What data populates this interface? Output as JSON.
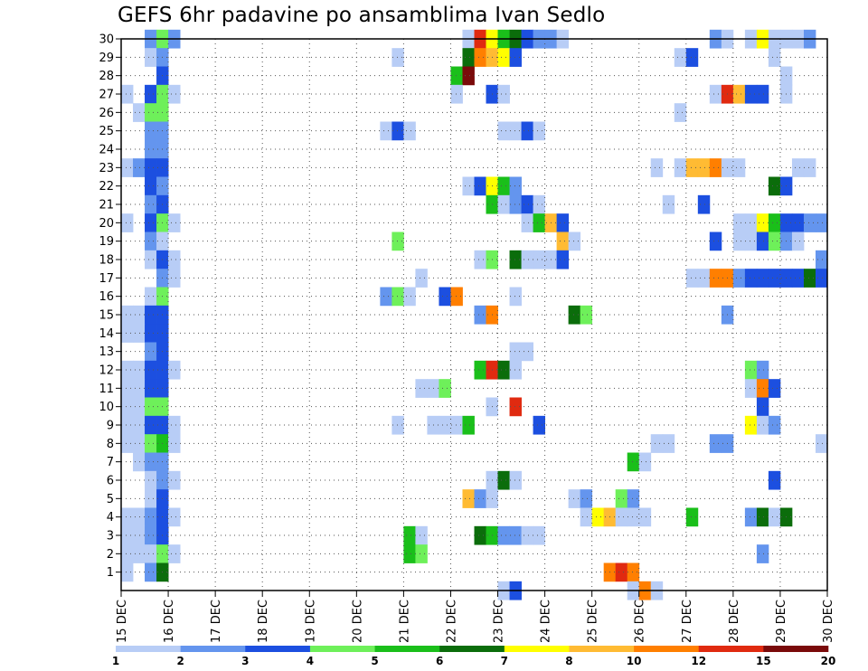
{
  "chart_data": {
    "type": "heatmap",
    "title": "GEFS 6hr padavine po ansamblima Ivan Sedlo",
    "xlabel": "",
    "ylabel": "",
    "x_tick_labels": [
      "15 DEC",
      "16 DEC",
      "17 DEC",
      "18 DEC",
      "19 DEC",
      "20 DEC",
      "21 DEC",
      "22 DEC",
      "23 DEC",
      "24 DEC",
      "25 DEC",
      "26 DEC",
      "27 DEC",
      "28 DEC",
      "29 DEC",
      "30 DEC"
    ],
    "y_tick_labels": [
      "1",
      "2",
      "3",
      "4",
      "5",
      "6",
      "7",
      "8",
      "9",
      "10",
      "11",
      "12",
      "13",
      "14",
      "15",
      "16",
      "17",
      "18",
      "19",
      "20",
      "21",
      "22",
      "23",
      "24",
      "25",
      "26",
      "27",
      "28",
      "29",
      "30"
    ],
    "xlim": [
      0,
      60
    ],
    "ylim": [
      0,
      30
    ],
    "cell_unit": "6 hours",
    "grid": true,
    "legend": {
      "placement": "bottom",
      "colors": [
        "#b8cdf6",
        "#6495ee",
        "#1c4fe0",
        "#6ef05a",
        "#1abf1a",
        "#0b6d0b",
        "#ffff00",
        "#ffbb33",
        "#ff7f00",
        "#e02a10",
        "#7a0a0a"
      ],
      "labels": [
        "1",
        "2",
        "3",
        "4",
        "5",
        "6",
        "7",
        "8",
        "10",
        "12",
        "15",
        "20"
      ]
    },
    "rows": [
      {
        "y": 30,
        "cells": [
          [
            2,
            1
          ],
          [
            3,
            3
          ],
          [
            4,
            1
          ],
          [
            29,
            0
          ],
          [
            30,
            9
          ],
          [
            31,
            6
          ],
          [
            32,
            4
          ],
          [
            33,
            5
          ],
          [
            34,
            2
          ],
          [
            35,
            1
          ],
          [
            36,
            1
          ],
          [
            37,
            0
          ],
          [
            50,
            1
          ],
          [
            51,
            0
          ],
          [
            53,
            0
          ],
          [
            54,
            6
          ],
          [
            55,
            0
          ],
          [
            56,
            0
          ],
          [
            57,
            0
          ],
          [
            58,
            1
          ]
        ]
      },
      {
        "y": 29,
        "cells": [
          [
            2,
            0
          ],
          [
            3,
            1
          ],
          [
            23,
            0
          ],
          [
            29,
            5
          ],
          [
            30,
            8
          ],
          [
            31,
            7
          ],
          [
            32,
            6
          ],
          [
            33,
            2
          ],
          [
            47,
            0
          ],
          [
            48,
            2
          ],
          [
            55,
            0
          ]
        ]
      },
      {
        "y": 28,
        "cells": [
          [
            3,
            2
          ],
          [
            28,
            4
          ],
          [
            29,
            10
          ],
          [
            56,
            0
          ]
        ]
      },
      {
        "y": 27,
        "cells": [
          [
            0,
            0
          ],
          [
            2,
            2
          ],
          [
            3,
            3
          ],
          [
            4,
            0
          ],
          [
            28,
            0
          ],
          [
            31,
            2
          ],
          [
            32,
            0
          ],
          [
            50,
            0
          ],
          [
            51,
            9
          ],
          [
            52,
            7
          ],
          [
            53,
            2
          ],
          [
            54,
            2
          ],
          [
            56,
            0
          ]
        ]
      },
      {
        "y": 26,
        "cells": [
          [
            1,
            0
          ],
          [
            2,
            3
          ],
          [
            3,
            3
          ],
          [
            47,
            0
          ]
        ]
      },
      {
        "y": 25,
        "cells": [
          [
            2,
            1
          ],
          [
            3,
            1
          ],
          [
            22,
            0
          ],
          [
            23,
            2
          ],
          [
            24,
            0
          ],
          [
            32,
            0
          ],
          [
            33,
            0
          ],
          [
            34,
            2
          ],
          [
            35,
            0
          ]
        ]
      },
      {
        "y": 24,
        "cells": [
          [
            2,
            1
          ],
          [
            3,
            1
          ]
        ]
      },
      {
        "y": 23,
        "cells": [
          [
            0,
            0
          ],
          [
            1,
            1
          ],
          [
            2,
            2
          ],
          [
            3,
            2
          ],
          [
            45,
            0
          ],
          [
            47,
            0
          ],
          [
            48,
            7
          ],
          [
            49,
            7
          ],
          [
            50,
            8
          ],
          [
            51,
            0
          ],
          [
            52,
            0
          ],
          [
            57,
            0
          ],
          [
            58,
            0
          ]
        ]
      },
      {
        "y": 22,
        "cells": [
          [
            2,
            2
          ],
          [
            3,
            1
          ],
          [
            29,
            0
          ],
          [
            30,
            2
          ],
          [
            31,
            6
          ],
          [
            32,
            4
          ],
          [
            33,
            1
          ],
          [
            55,
            5
          ],
          [
            56,
            2
          ]
        ]
      },
      {
        "y": 21,
        "cells": [
          [
            2,
            1
          ],
          [
            3,
            2
          ],
          [
            31,
            4
          ],
          [
            32,
            0
          ],
          [
            33,
            1
          ],
          [
            34,
            2
          ],
          [
            35,
            0
          ],
          [
            46,
            0
          ],
          [
            49,
            2
          ]
        ]
      },
      {
        "y": 20,
        "cells": [
          [
            0,
            0
          ],
          [
            2,
            2
          ],
          [
            3,
            3
          ],
          [
            4,
            0
          ],
          [
            34,
            0
          ],
          [
            35,
            4
          ],
          [
            36,
            7
          ],
          [
            37,
            2
          ],
          [
            52,
            0
          ],
          [
            53,
            0
          ],
          [
            54,
            6
          ],
          [
            55,
            4
          ],
          [
            56,
            2
          ],
          [
            57,
            2
          ],
          [
            58,
            1
          ],
          [
            59,
            1
          ]
        ]
      },
      {
        "y": 19,
        "cells": [
          [
            2,
            1
          ],
          [
            3,
            0
          ],
          [
            23,
            3
          ],
          [
            37,
            7
          ],
          [
            38,
            0
          ],
          [
            50,
            2
          ],
          [
            52,
            0
          ],
          [
            53,
            0
          ],
          [
            54,
            2
          ],
          [
            55,
            3
          ],
          [
            56,
            1
          ],
          [
            57,
            0
          ]
        ]
      },
      {
        "y": 18,
        "cells": [
          [
            2,
            0
          ],
          [
            3,
            2
          ],
          [
            4,
            0
          ],
          [
            30,
            0
          ],
          [
            31,
            3
          ],
          [
            33,
            5
          ],
          [
            34,
            0
          ],
          [
            35,
            0
          ],
          [
            36,
            0
          ],
          [
            37,
            2
          ],
          [
            59,
            1
          ]
        ]
      },
      {
        "y": 17,
        "cells": [
          [
            3,
            1
          ],
          [
            4,
            0
          ],
          [
            25,
            0
          ],
          [
            48,
            0
          ],
          [
            49,
            0
          ],
          [
            50,
            8
          ],
          [
            51,
            8
          ],
          [
            52,
            1
          ],
          [
            53,
            2
          ],
          [
            54,
            2
          ],
          [
            55,
            2
          ],
          [
            56,
            2
          ],
          [
            57,
            2
          ],
          [
            58,
            5
          ],
          [
            59,
            2
          ]
        ]
      },
      {
        "y": 16,
        "cells": [
          [
            2,
            0
          ],
          [
            3,
            3
          ],
          [
            22,
            1
          ],
          [
            23,
            3
          ],
          [
            24,
            0
          ],
          [
            27,
            2
          ],
          [
            28,
            8
          ],
          [
            33,
            0
          ]
        ]
      },
      {
        "y": 15,
        "cells": [
          [
            0,
            0
          ],
          [
            1,
            0
          ],
          [
            2,
            2
          ],
          [
            3,
            2
          ],
          [
            30,
            1
          ],
          [
            31,
            8
          ],
          [
            38,
            5
          ],
          [
            39,
            3
          ],
          [
            51,
            1
          ]
        ]
      },
      {
        "y": 14,
        "cells": [
          [
            0,
            0
          ],
          [
            1,
            0
          ],
          [
            2,
            2
          ],
          [
            3,
            2
          ]
        ]
      },
      {
        "y": 13,
        "cells": [
          [
            2,
            1
          ],
          [
            3,
            2
          ],
          [
            33,
            0
          ],
          [
            34,
            0
          ]
        ]
      },
      {
        "y": 12,
        "cells": [
          [
            0,
            0
          ],
          [
            1,
            0
          ],
          [
            2,
            2
          ],
          [
            3,
            2
          ],
          [
            4,
            0
          ],
          [
            30,
            4
          ],
          [
            31,
            9
          ],
          [
            32,
            5
          ],
          [
            33,
            0
          ],
          [
            53,
            3
          ],
          [
            54,
            1
          ]
        ]
      },
      {
        "y": 11,
        "cells": [
          [
            0,
            0
          ],
          [
            1,
            0
          ],
          [
            2,
            2
          ],
          [
            3,
            2
          ],
          [
            25,
            0
          ],
          [
            26,
            0
          ],
          [
            27,
            3
          ],
          [
            53,
            0
          ],
          [
            54,
            8
          ],
          [
            55,
            2
          ]
        ]
      },
      {
        "y": 10,
        "cells": [
          [
            0,
            0
          ],
          [
            1,
            0
          ],
          [
            2,
            3
          ],
          [
            3,
            3
          ],
          [
            31,
            0
          ],
          [
            33,
            9
          ],
          [
            54,
            2
          ]
        ]
      },
      {
        "y": 9,
        "cells": [
          [
            0,
            0
          ],
          [
            1,
            0
          ],
          [
            2,
            2
          ],
          [
            3,
            2
          ],
          [
            4,
            0
          ],
          [
            23,
            0
          ],
          [
            26,
            0
          ],
          [
            27,
            0
          ],
          [
            28,
            0
          ],
          [
            29,
            4
          ],
          [
            35,
            2
          ],
          [
            53,
            6
          ],
          [
            54,
            0
          ],
          [
            55,
            1
          ]
        ]
      },
      {
        "y": 8,
        "cells": [
          [
            0,
            0
          ],
          [
            1,
            0
          ],
          [
            2,
            3
          ],
          [
            3,
            4
          ],
          [
            4,
            0
          ],
          [
            45,
            0
          ],
          [
            46,
            0
          ],
          [
            50,
            1
          ],
          [
            51,
            1
          ],
          [
            59,
            0
          ]
        ]
      },
      {
        "y": 7,
        "cells": [
          [
            1,
            0
          ],
          [
            2,
            1
          ],
          [
            3,
            1
          ],
          [
            43,
            4
          ],
          [
            44,
            0
          ]
        ]
      },
      {
        "y": 6,
        "cells": [
          [
            2,
            0
          ],
          [
            3,
            1
          ],
          [
            4,
            0
          ],
          [
            31,
            0
          ],
          [
            32,
            5
          ],
          [
            33,
            0
          ],
          [
            55,
            2
          ]
        ]
      },
      {
        "y": 5,
        "cells": [
          [
            2,
            0
          ],
          [
            3,
            2
          ],
          [
            29,
            7
          ],
          [
            30,
            1
          ],
          [
            31,
            0
          ],
          [
            38,
            0
          ],
          [
            39,
            1
          ],
          [
            42,
            3
          ],
          [
            43,
            1
          ]
        ]
      },
      {
        "y": 4,
        "cells": [
          [
            0,
            0
          ],
          [
            1,
            0
          ],
          [
            2,
            1
          ],
          [
            3,
            2
          ],
          [
            4,
            0
          ],
          [
            39,
            0
          ],
          [
            40,
            6
          ],
          [
            41,
            7
          ],
          [
            42,
            0
          ],
          [
            43,
            0
          ],
          [
            44,
            0
          ],
          [
            48,
            4
          ],
          [
            53,
            1
          ],
          [
            54,
            5
          ],
          [
            55,
            0
          ],
          [
            56,
            5
          ]
        ]
      },
      {
        "y": 3,
        "cells": [
          [
            0,
            0
          ],
          [
            1,
            0
          ],
          [
            2,
            1
          ],
          [
            3,
            2
          ],
          [
            24,
            4
          ],
          [
            25,
            0
          ],
          [
            30,
            5
          ],
          [
            31,
            4
          ],
          [
            32,
            1
          ],
          [
            33,
            1
          ],
          [
            34,
            0
          ],
          [
            35,
            0
          ]
        ]
      },
      {
        "y": 2,
        "cells": [
          [
            0,
            0
          ],
          [
            1,
            0
          ],
          [
            2,
            0
          ],
          [
            3,
            3
          ],
          [
            4,
            0
          ],
          [
            24,
            4
          ],
          [
            25,
            3
          ],
          [
            54,
            1
          ]
        ]
      },
      {
        "y": 1,
        "cells": [
          [
            0,
            0
          ],
          [
            2,
            1
          ],
          [
            3,
            5
          ],
          [
            41,
            8
          ],
          [
            42,
            9
          ],
          [
            43,
            8
          ]
        ]
      },
      {
        "y": 0,
        "cells": [
          [
            32,
            0
          ],
          [
            33,
            2
          ],
          [
            43,
            0
          ],
          [
            44,
            8
          ],
          [
            45,
            0
          ]
        ]
      }
    ]
  }
}
